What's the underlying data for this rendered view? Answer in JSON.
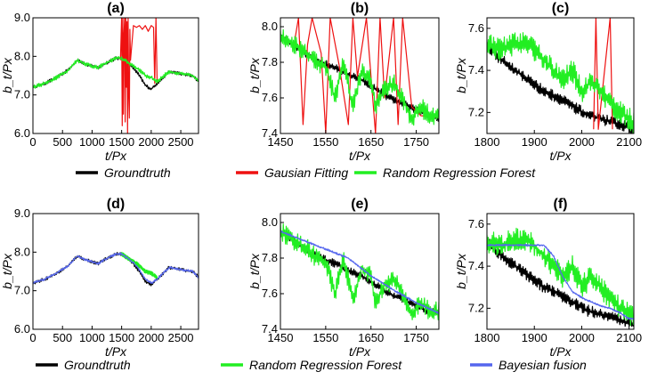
{
  "colors": {
    "groundtruth": "#000000",
    "gaussian": "#ee1111",
    "forest": "#22ee22",
    "fusion": "#5566ee"
  },
  "legends": [
    {
      "items": [
        {
          "label": "Groundtruth",
          "color": "#000000"
        },
        {
          "label": "Gausian Fitting",
          "color": "#ee1111"
        },
        {
          "label": "Random Regression Forest",
          "color": "#22ee22"
        }
      ]
    },
    {
      "items": [
        {
          "label": "Groundtruth",
          "color": "#000000"
        },
        {
          "label": "Random Regression Forest",
          "color": "#22ee22"
        },
        {
          "label": "Bayesian fusion",
          "color": "#5566ee"
        }
      ]
    }
  ],
  "chart_data": [
    {
      "panel": "(a)",
      "type": "line",
      "title": "(a)",
      "xlabel": "t/Px",
      "ylabel": "b_t/Px",
      "xlim": [
        0,
        2800
      ],
      "ylim": [
        6.0,
        9.0
      ],
      "xticks": [
        0,
        500,
        1000,
        1500,
        2000,
        2500
      ],
      "yticks": [
        6.0,
        7.0,
        8.0,
        9.0
      ],
      "ytick_labels": [
        "6.0",
        "7.0",
        "8.0",
        "9.0"
      ],
      "series": [
        {
          "name": "Groundtruth",
          "color": "#000000",
          "x": [
            0,
            200,
            400,
            600,
            750,
            900,
            1100,
            1200,
            1400,
            1500,
            1600,
            1700,
            1800,
            1900,
            2000,
            2100,
            2300,
            2500,
            2700,
            2800
          ],
          "y": [
            7.2,
            7.3,
            7.45,
            7.65,
            7.9,
            7.8,
            7.7,
            7.8,
            7.95,
            7.95,
            7.85,
            7.7,
            7.5,
            7.25,
            7.15,
            7.3,
            7.6,
            7.55,
            7.5,
            7.35
          ]
        },
        {
          "name": "Gausian Fitting",
          "color": "#ee1111",
          "x": [
            1480,
            1500,
            1510,
            1520,
            1530,
            1540,
            1550,
            1560,
            1570,
            1580,
            1590,
            1600,
            1610,
            1620,
            1630,
            1640,
            1650,
            1700,
            1750,
            1800,
            1850,
            1900,
            1950,
            2000,
            2040,
            2060,
            2080,
            2100
          ],
          "y": [
            7.9,
            9.0,
            6.2,
            9.0,
            6.5,
            8.6,
            9.0,
            6.3,
            9.0,
            7.2,
            8.9,
            6.0,
            9.0,
            7.0,
            6.4,
            8.7,
            7.9,
            8.8,
            8.75,
            8.8,
            8.7,
            8.8,
            8.65,
            8.8,
            8.75,
            7.3,
            9.0,
            7.3
          ]
        },
        {
          "name": "Random Regression Forest",
          "color": "#22ee22",
          "x": [
            0,
            200,
            400,
            600,
            750,
            900,
            1100,
            1200,
            1400,
            1500,
            1600,
            1700,
            1800,
            1900,
            2000,
            2100,
            2300,
            2500,
            2700,
            2800
          ],
          "y": [
            7.2,
            7.3,
            7.45,
            7.65,
            7.9,
            7.8,
            7.7,
            7.8,
            7.95,
            7.95,
            7.85,
            7.75,
            7.65,
            7.5,
            7.45,
            7.35,
            7.6,
            7.55,
            7.5,
            7.35
          ]
        }
      ]
    },
    {
      "panel": "(b)",
      "type": "line",
      "title": "(b)",
      "xlabel": "t/Px",
      "ylabel": "b_t/Px",
      "xlim": [
        1450,
        1800
      ],
      "ylim": [
        7.4,
        8.05
      ],
      "xticks": [
        1450,
        1550,
        1650,
        1750
      ],
      "yticks": [
        7.4,
        7.6,
        7.8,
        8.0
      ],
      "ytick_labels": [
        "7.4",
        "7.6",
        "7.8",
        "8.0"
      ],
      "series": [
        {
          "name": "Groundtruth",
          "color": "#000000",
          "x": [
            1450,
            1480,
            1510,
            1540,
            1570,
            1600,
            1630,
            1660,
            1690,
            1720,
            1750,
            1780,
            1800
          ],
          "y": [
            7.95,
            7.9,
            7.84,
            7.8,
            7.77,
            7.73,
            7.7,
            7.65,
            7.6,
            7.57,
            7.53,
            7.5,
            7.49
          ]
        },
        {
          "name": "Gausian Fitting",
          "color": "#ee1111",
          "x": [
            1450,
            1480,
            1490,
            1500,
            1510,
            1520,
            1540,
            1550,
            1560,
            1580,
            1600,
            1610,
            1620,
            1640,
            1660,
            1670,
            1680,
            1700,
            1710,
            1720,
            1740,
            1760,
            1800
          ],
          "y": [
            7.95,
            7.9,
            8.05,
            7.45,
            7.9,
            8.05,
            7.85,
            7.4,
            8.05,
            7.78,
            7.45,
            8.05,
            7.72,
            8.05,
            7.4,
            8.05,
            7.6,
            8.05,
            7.45,
            8.05,
            7.55,
            7.5,
            7.49
          ]
        },
        {
          "name": "Random Regression Forest",
          "color": "#22ee22",
          "x": [
            1450,
            1480,
            1510,
            1530,
            1550,
            1570,
            1590,
            1610,
            1630,
            1650,
            1660,
            1680,
            1700,
            1720,
            1740,
            1760,
            1780,
            1800
          ],
          "y": [
            7.95,
            7.9,
            7.85,
            7.8,
            7.78,
            7.6,
            7.8,
            7.55,
            7.75,
            7.7,
            7.55,
            7.65,
            7.68,
            7.6,
            7.48,
            7.55,
            7.5,
            7.5
          ]
        }
      ]
    },
    {
      "panel": "(c)",
      "type": "line",
      "title": "(c)",
      "xlabel": "t/Px",
      "ylabel": "b_t/Px",
      "xlim": [
        1800,
        2110
      ],
      "ylim": [
        7.1,
        7.65
      ],
      "xticks": [
        1800,
        1900,
        2000,
        2100
      ],
      "yticks": [
        7.2,
        7.4,
        7.6
      ],
      "ytick_labels": [
        "7.2",
        "7.4",
        "7.6"
      ],
      "series": [
        {
          "name": "Groundtruth",
          "color": "#000000",
          "x": [
            1800,
            1830,
            1860,
            1890,
            1920,
            1950,
            1980,
            2010,
            2040,
            2070,
            2100,
            2110
          ],
          "y": [
            7.52,
            7.45,
            7.4,
            7.35,
            7.3,
            7.27,
            7.23,
            7.19,
            7.17,
            7.15,
            7.13,
            7.12
          ]
        },
        {
          "name": "Gausian Fitting",
          "color": "#ee1111",
          "x": [
            2025,
            2030,
            2035,
            2060,
            2065
          ],
          "y": [
            7.12,
            7.65,
            7.12,
            7.65,
            7.12
          ]
        },
        {
          "name": "Random Regression Forest",
          "color": "#22ee22",
          "x": [
            1800,
            1830,
            1860,
            1890,
            1920,
            1940,
            1960,
            1980,
            2000,
            2020,
            2040,
            2060,
            2080,
            2100,
            2110
          ],
          "y": [
            7.52,
            7.5,
            7.53,
            7.52,
            7.45,
            7.4,
            7.35,
            7.4,
            7.3,
            7.35,
            7.3,
            7.25,
            7.2,
            7.17,
            7.15
          ]
        }
      ]
    },
    {
      "panel": "(d)",
      "type": "line",
      "title": "(d)",
      "xlabel": "t/Px",
      "ylabel": "b_t/Px",
      "xlim": [
        0,
        2800
      ],
      "ylim": [
        6.0,
        9.0
      ],
      "xticks": [
        0,
        500,
        1000,
        1500,
        2000,
        2500
      ],
      "yticks": [
        6.0,
        7.0,
        8.0,
        9.0
      ],
      "ytick_labels": [
        "6.0",
        "7.0",
        "8.0",
        "9.0"
      ],
      "series": [
        {
          "name": "Groundtruth",
          "color": "#000000",
          "x": [
            0,
            200,
            400,
            600,
            750,
            900,
            1100,
            1200,
            1400,
            1500,
            1600,
            1700,
            1800,
            1900,
            2000,
            2100,
            2300,
            2500,
            2700,
            2800
          ],
          "y": [
            7.2,
            7.3,
            7.45,
            7.65,
            7.9,
            7.8,
            7.7,
            7.8,
            7.95,
            7.95,
            7.85,
            7.7,
            7.5,
            7.25,
            7.15,
            7.3,
            7.6,
            7.55,
            7.5,
            7.35
          ]
        },
        {
          "name": "Random Regression Forest",
          "color": "#22ee22",
          "x": [
            1500,
            1600,
            1700,
            1800,
            1900,
            2000,
            2100
          ],
          "y": [
            7.95,
            7.85,
            7.75,
            7.65,
            7.5,
            7.45,
            7.35
          ]
        },
        {
          "name": "Bayesian fusion",
          "color": "#5566ee",
          "x": [
            0,
            200,
            400,
            600,
            750,
            900,
            1100,
            1200,
            1400,
            1500,
            1600,
            1700,
            1800,
            1900,
            2000,
            2100,
            2300,
            2500,
            2700,
            2800
          ],
          "y": [
            7.2,
            7.3,
            7.45,
            7.65,
            7.9,
            7.8,
            7.7,
            7.8,
            7.95,
            7.95,
            7.85,
            7.72,
            7.55,
            7.3,
            7.2,
            7.3,
            7.6,
            7.55,
            7.5,
            7.35
          ]
        }
      ]
    },
    {
      "panel": "(e)",
      "type": "line",
      "title": "(e)",
      "xlabel": "t/Px",
      "ylabel": "b_t/Px",
      "xlim": [
        1450,
        1800
      ],
      "ylim": [
        7.4,
        8.05
      ],
      "xticks": [
        1450,
        1550,
        1650,
        1750
      ],
      "yticks": [
        7.4,
        7.6,
        7.8,
        8.0
      ],
      "ytick_labels": [
        "7.4",
        "7.6",
        "7.8",
        "8.0"
      ],
      "series": [
        {
          "name": "Groundtruth",
          "color": "#000000",
          "x": [
            1450,
            1480,
            1510,
            1540,
            1570,
            1600,
            1630,
            1660,
            1690,
            1720,
            1750,
            1780,
            1800
          ],
          "y": [
            7.95,
            7.9,
            7.84,
            7.8,
            7.77,
            7.73,
            7.7,
            7.65,
            7.6,
            7.57,
            7.53,
            7.5,
            7.49
          ]
        },
        {
          "name": "Random Regression Forest",
          "color": "#22ee22",
          "x": [
            1450,
            1480,
            1510,
            1530,
            1550,
            1570,
            1590,
            1610,
            1630,
            1650,
            1660,
            1680,
            1700,
            1720,
            1740,
            1760,
            1780,
            1800
          ],
          "y": [
            7.95,
            7.9,
            7.85,
            7.8,
            7.78,
            7.6,
            7.8,
            7.55,
            7.75,
            7.7,
            7.55,
            7.65,
            7.68,
            7.6,
            7.48,
            7.55,
            7.5,
            7.5
          ]
        },
        {
          "name": "Bayesian fusion",
          "color": "#5566ee",
          "x": [
            1450,
            1500,
            1550,
            1600,
            1650,
            1700,
            1750,
            1800
          ],
          "y": [
            7.95,
            7.9,
            7.85,
            7.8,
            7.7,
            7.62,
            7.55,
            7.49
          ]
        }
      ]
    },
    {
      "panel": "(f)",
      "type": "line",
      "title": "(f)",
      "xlabel": "t/Px",
      "ylabel": "b_t/Px",
      "xlim": [
        1800,
        2110
      ],
      "ylim": [
        7.1,
        7.65
      ],
      "xticks": [
        1800,
        1900,
        2000,
        2100
      ],
      "yticks": [
        7.2,
        7.4,
        7.6
      ],
      "ytick_labels": [
        "7.2",
        "7.4",
        "7.6"
      ],
      "series": [
        {
          "name": "Groundtruth",
          "color": "#000000",
          "x": [
            1800,
            1830,
            1860,
            1890,
            1920,
            1950,
            1980,
            2010,
            2040,
            2070,
            2100,
            2110
          ],
          "y": [
            7.52,
            7.45,
            7.4,
            7.35,
            7.3,
            7.27,
            7.23,
            7.19,
            7.17,
            7.15,
            7.13,
            7.12
          ]
        },
        {
          "name": "Random Regression Forest",
          "color": "#22ee22",
          "x": [
            1800,
            1830,
            1860,
            1890,
            1920,
            1940,
            1960,
            1980,
            2000,
            2020,
            2040,
            2060,
            2080,
            2100,
            2110
          ],
          "y": [
            7.52,
            7.5,
            7.53,
            7.52,
            7.45,
            7.4,
            7.35,
            7.4,
            7.3,
            7.35,
            7.3,
            7.25,
            7.2,
            7.17,
            7.15
          ]
        },
        {
          "name": "Bayesian fusion",
          "color": "#5566ee",
          "x": [
            1800,
            1840,
            1880,
            1920,
            1940,
            1960,
            1980,
            2000,
            2020,
            2040,
            2060,
            2080,
            2100,
            2110
          ],
          "y": [
            7.5,
            7.5,
            7.5,
            7.5,
            7.45,
            7.35,
            7.28,
            7.25,
            7.23,
            7.21,
            7.2,
            7.18,
            7.15,
            7.15
          ]
        }
      ]
    }
  ]
}
